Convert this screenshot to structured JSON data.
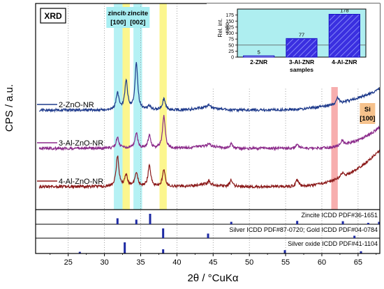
{
  "chart_data": {
    "type": "line",
    "main_panel": {
      "ylabel": "CPS / a.u.",
      "xlim": [
        20.5,
        68
      ],
      "y_ticks_shown": false,
      "badge": "XRD",
      "highlight_bands": [
        {
          "from": 31.3,
          "to": 32.5,
          "color": "#a8eef2"
        },
        {
          "from": 32.5,
          "to": 33.5,
          "color": "#fbf47a"
        },
        {
          "from": 34.0,
          "to": 35.2,
          "color": "#a8eef2"
        },
        {
          "from": 37.6,
          "to": 38.6,
          "color": "#fbf47a"
        },
        {
          "from": 61.3,
          "to": 62.2,
          "color": "#f6a0a0"
        }
      ],
      "band_labels": [
        {
          "text": [
            "zincite",
            "[100]"
          ],
          "at": 31.9,
          "bg": "#a8eef2"
        },
        {
          "text": [
            "zincite",
            "[002]"
          ],
          "at": 34.6,
          "bg": "#a8eef2"
        },
        {
          "text": [
            "Si",
            "[100]"
          ],
          "at": 66.3,
          "bg": "#f6c28c"
        }
      ],
      "series": [
        {
          "name": "2-ZnO-NR",
          "color": "#1f3b8c",
          "baseline": 1.0,
          "rise_start": 52,
          "rise_max": 0.55,
          "peaks": [
            [
              31.8,
              0.45
            ],
            [
              33.0,
              0.75
            ],
            [
              34.4,
              1.25
            ],
            [
              36.2,
              0.1
            ],
            [
              38.2,
              0.3
            ],
            [
              44.4,
              0.08
            ],
            [
              62.2,
              0.15
            ]
          ]
        },
        {
          "name": "3-Al-ZnO-NR",
          "color": "#8b2a8a",
          "baseline": 0.0,
          "rise_start": 58,
          "rise_max": 0.55,
          "peaks": [
            [
              31.8,
              0.3
            ],
            [
              34.4,
              0.4
            ],
            [
              36.2,
              0.33
            ],
            [
              38.2,
              0.85
            ],
            [
              44.4,
              0.06
            ],
            [
              47.5,
              0.12
            ],
            [
              56.6,
              0.1
            ],
            [
              62.8,
              0.12
            ]
          ]
        },
        {
          "name": "4-Al-ZnO-NR",
          "color": "#8b1a1a",
          "baseline": -1.0,
          "rise_start": 55,
          "rise_max": 0.95,
          "peaks": [
            [
              31.8,
              0.8
            ],
            [
              33.0,
              0.3
            ],
            [
              34.4,
              0.38
            ],
            [
              36.2,
              0.55
            ],
            [
              38.2,
              0.45
            ],
            [
              44.4,
              0.08
            ],
            [
              47.5,
              0.18
            ],
            [
              56.6,
              0.18
            ],
            [
              62.8,
              0.12
            ]
          ]
        }
      ]
    },
    "reference_panels": [
      {
        "label": "Zincite ICDD PDF#36-1651",
        "lines": [
          [
            31.8,
            0.57
          ],
          [
            34.4,
            0.44
          ],
          [
            36.3,
            1.0
          ],
          [
            47.5,
            0.23
          ],
          [
            56.6,
            0.32
          ],
          [
            62.9,
            0.29
          ],
          [
            66.4,
            0.04
          ],
          [
            67.9,
            0.23
          ]
        ]
      },
      {
        "label": "Silver ICDD PDF#87-0720; Gold ICDD PDF#04-0784",
        "lines": [
          [
            38.1,
            1.0
          ],
          [
            44.3,
            0.47
          ],
          [
            64.5,
            0.25
          ]
        ]
      },
      {
        "label": "Silver oxide ICDD PDF#41-1104",
        "lines": [
          [
            26.6,
            0.15
          ],
          [
            32.8,
            1.0
          ],
          [
            38.1,
            0.38
          ],
          [
            54.9,
            0.3
          ],
          [
            65.4,
            0.2
          ]
        ]
      }
    ],
    "xlabel": "2θ / °CuKα",
    "x_ticks": [
      25,
      30,
      35,
      40,
      45,
      50,
      55,
      60,
      65
    ],
    "inset": {
      "type": "bar",
      "ylabel": "Rel. int. ratio",
      "xlabel": "samples",
      "categories": [
        "2-ZNR",
        "3-Al-ZNR",
        "4-Al-ZNR"
      ],
      "values": [
        5,
        77,
        178
      ],
      "ylim": [
        0,
        200
      ],
      "y_ticks": [
        0,
        25,
        50,
        75,
        100,
        125,
        150,
        175
      ],
      "reference_line": 50
    }
  }
}
